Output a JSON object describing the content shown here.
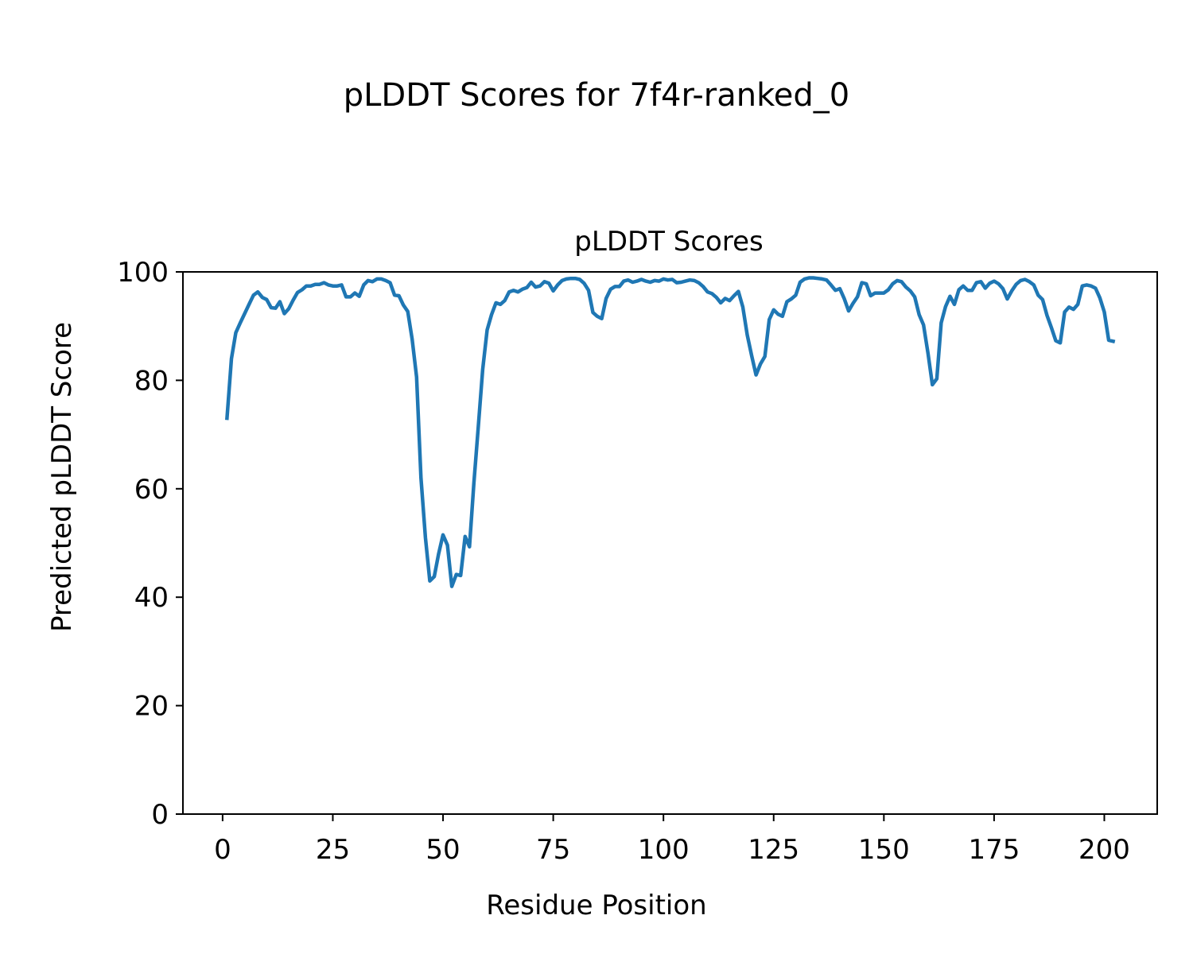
{
  "figure": {
    "suptitle": "pLDDT Scores for 7f4r-ranked_0"
  },
  "chart_data": {
    "type": "line",
    "title": "pLDDT Scores",
    "xlabel": "Residue Position",
    "ylabel": "Predicted pLDDT Score",
    "xlim": [
      -9,
      212
    ],
    "ylim": [
      0,
      100
    ],
    "xticks": [
      0,
      25,
      50,
      75,
      100,
      125,
      150,
      175,
      200
    ],
    "yticks": [
      0,
      20,
      40,
      60,
      80,
      100
    ],
    "grid": false,
    "legend": "none",
    "series": [
      {
        "color": "#1f77b4",
        "x": [
          1,
          2,
          3,
          4,
          5,
          6,
          7,
          8,
          9,
          10,
          11,
          12,
          13,
          14,
          15,
          16,
          17,
          18,
          19,
          20,
          21,
          22,
          23,
          24,
          25,
          26,
          27,
          28,
          29,
          30,
          31,
          32,
          33,
          34,
          35,
          36,
          37,
          38,
          39,
          40,
          41,
          42,
          43,
          44,
          45,
          46,
          47,
          48,
          49,
          50,
          51,
          52,
          53,
          54,
          55,
          56,
          57,
          58,
          59,
          60,
          61,
          62,
          63,
          64,
          65,
          66,
          67,
          68,
          69,
          70,
          71,
          72,
          73,
          74,
          75,
          76,
          77,
          78,
          79,
          80,
          81,
          82,
          83,
          84,
          85,
          86,
          87,
          88,
          89,
          90,
          91,
          92,
          93,
          94,
          95,
          96,
          97,
          98,
          99,
          100,
          101,
          102,
          103,
          104,
          105,
          106,
          107,
          108,
          109,
          110,
          111,
          112,
          113,
          114,
          115,
          116,
          117,
          118,
          119,
          120,
          121,
          122,
          123,
          124,
          125,
          126,
          127,
          128,
          129,
          130,
          131,
          132,
          133,
          134,
          135,
          136,
          137,
          138,
          139,
          140,
          141,
          142,
          143,
          144,
          145,
          146,
          147,
          148,
          149,
          150,
          151,
          152,
          153,
          154,
          155,
          156,
          157,
          158,
          159,
          160,
          161,
          162,
          163,
          164,
          165,
          166,
          167,
          168,
          169,
          170,
          171,
          172,
          173,
          174,
          175,
          176,
          177,
          178,
          179,
          180,
          181,
          182,
          183,
          184,
          185,
          186,
          187,
          188,
          189,
          190,
          191,
          192,
          193,
          194,
          195,
          196,
          197,
          198,
          199,
          200,
          201,
          202
        ],
        "y": [
          73.0,
          84.0,
          88.8,
          90.6,
          92.3,
          94.0,
          95.7,
          96.3,
          95.3,
          94.9,
          93.4,
          93.3,
          94.5,
          92.3,
          93.2,
          94.8,
          96.2,
          96.7,
          97.4,
          97.4,
          97.7,
          97.7,
          98.0,
          97.6,
          97.4,
          97.4,
          97.6,
          95.4,
          95.4,
          96.1,
          95.5,
          97.6,
          98.4,
          98.2,
          98.7,
          98.7,
          98.4,
          98.0,
          95.7,
          95.6,
          93.9,
          92.7,
          87.6,
          80.6,
          62.0,
          51.0,
          43.0,
          43.8,
          48.0,
          51.5,
          49.6,
          42.0,
          44.2,
          44.0,
          51.2,
          49.3,
          61.0,
          71.5,
          82.0,
          89.3,
          92.1,
          94.3,
          94.0,
          94.7,
          96.3,
          96.6,
          96.3,
          96.8,
          97.1,
          98.1,
          97.2,
          97.4,
          98.2,
          97.9,
          96.5,
          97.6,
          98.4,
          98.7,
          98.8,
          98.8,
          98.6,
          97.9,
          96.6,
          92.5,
          91.8,
          91.4,
          95.1,
          96.8,
          97.3,
          97.3,
          98.3,
          98.5,
          98.1,
          98.3,
          98.6,
          98.3,
          98.1,
          98.4,
          98.3,
          98.7,
          98.5,
          98.6,
          98.0,
          98.1,
          98.3,
          98.5,
          98.4,
          98.0,
          97.3,
          96.3,
          96.0,
          95.3,
          94.3,
          95.1,
          94.7,
          95.6,
          96.4,
          93.5,
          88.4,
          84.6,
          81.0,
          83.0,
          84.4,
          91.2,
          93.0,
          92.2,
          91.8,
          94.5,
          95.0,
          95.7,
          98.1,
          98.7,
          98.9,
          98.9,
          98.8,
          98.7,
          98.5,
          97.6,
          96.6,
          96.9,
          95.1,
          92.8,
          94.2,
          95.4,
          98.0,
          97.8,
          95.6,
          96.1,
          96.1,
          96.1,
          96.7,
          97.8,
          98.4,
          98.2,
          97.2,
          96.5,
          95.4,
          92.1,
          90.2,
          85.0,
          79.2,
          80.3,
          90.6,
          93.6,
          95.5,
          94.0,
          96.7,
          97.4,
          96.6,
          96.6,
          98.0,
          98.2,
          97.0,
          97.9,
          98.3,
          97.8,
          96.9,
          95.0,
          96.5,
          97.7,
          98.4,
          98.6,
          98.2,
          97.6,
          95.7,
          94.9,
          92.0,
          89.7,
          87.3,
          86.9,
          92.6,
          93.5,
          93.1,
          94.0,
          97.4,
          97.6,
          97.4,
          97.0,
          95.2,
          92.6,
          87.4,
          87.2
        ]
      }
    ]
  }
}
